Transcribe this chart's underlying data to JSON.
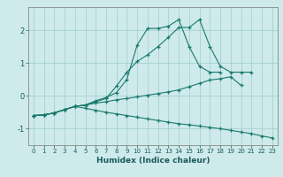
{
  "xlabel": "Humidex (Indice chaleur)",
  "xlim": [
    -0.5,
    23.5
  ],
  "ylim": [
    -1.5,
    2.7
  ],
  "yticks": [
    -1,
    0,
    1,
    2
  ],
  "xticks": [
    0,
    1,
    2,
    3,
    4,
    5,
    6,
    7,
    8,
    9,
    10,
    11,
    12,
    13,
    14,
    15,
    16,
    17,
    18,
    19,
    20,
    21,
    22,
    23
  ],
  "bg_color": "#ceeaea",
  "grid_color": "#a0cccc",
  "line_color": "#1a7a6e",
  "line1_x": [
    0,
    1,
    2,
    3,
    4,
    5,
    6,
    7,
    8,
    9,
    10,
    11,
    12,
    13,
    14,
    15,
    16,
    17,
    18,
    19,
    20,
    21
  ],
  "line1_y": [
    -0.6,
    -0.58,
    -0.52,
    -0.42,
    -0.32,
    -0.28,
    -0.18,
    -0.08,
    0.3,
    0.72,
    1.05,
    1.25,
    1.5,
    1.78,
    2.08,
    2.08,
    2.32,
    1.5,
    0.9,
    0.72,
    0.72,
    0.72
  ],
  "line2_x": [
    0,
    1,
    2,
    3,
    4,
    5,
    6,
    7,
    8,
    9,
    10,
    11,
    12,
    13,
    14,
    15,
    16,
    17,
    18
  ],
  "line2_y": [
    -0.6,
    -0.58,
    -0.52,
    -0.42,
    -0.32,
    -0.28,
    -0.15,
    -0.05,
    0.1,
    0.5,
    1.55,
    2.05,
    2.05,
    2.12,
    2.32,
    1.5,
    0.9,
    0.72,
    0.72
  ],
  "line3_x": [
    0,
    1,
    2,
    3,
    4,
    5,
    6,
    7,
    8,
    9,
    10,
    11,
    12,
    13,
    14,
    15,
    16,
    17,
    18,
    19,
    20
  ],
  "line3_y": [
    -0.6,
    -0.58,
    -0.52,
    -0.42,
    -0.32,
    -0.28,
    -0.22,
    -0.18,
    -0.12,
    -0.08,
    -0.03,
    0.02,
    0.07,
    0.12,
    0.18,
    0.28,
    0.38,
    0.48,
    0.52,
    0.58,
    0.32
  ],
  "line4_x": [
    0,
    1,
    2,
    3,
    4,
    5,
    6,
    7,
    8,
    9,
    10,
    11,
    12,
    13,
    14,
    15,
    16,
    17,
    18,
    19,
    20,
    21,
    22,
    23
  ],
  "line4_y": [
    -0.6,
    -0.58,
    -0.52,
    -0.42,
    -0.32,
    -0.38,
    -0.44,
    -0.5,
    -0.55,
    -0.6,
    -0.65,
    -0.7,
    -0.75,
    -0.8,
    -0.85,
    -0.88,
    -0.92,
    -0.96,
    -1.0,
    -1.05,
    -1.1,
    -1.15,
    -1.22,
    -1.28
  ]
}
